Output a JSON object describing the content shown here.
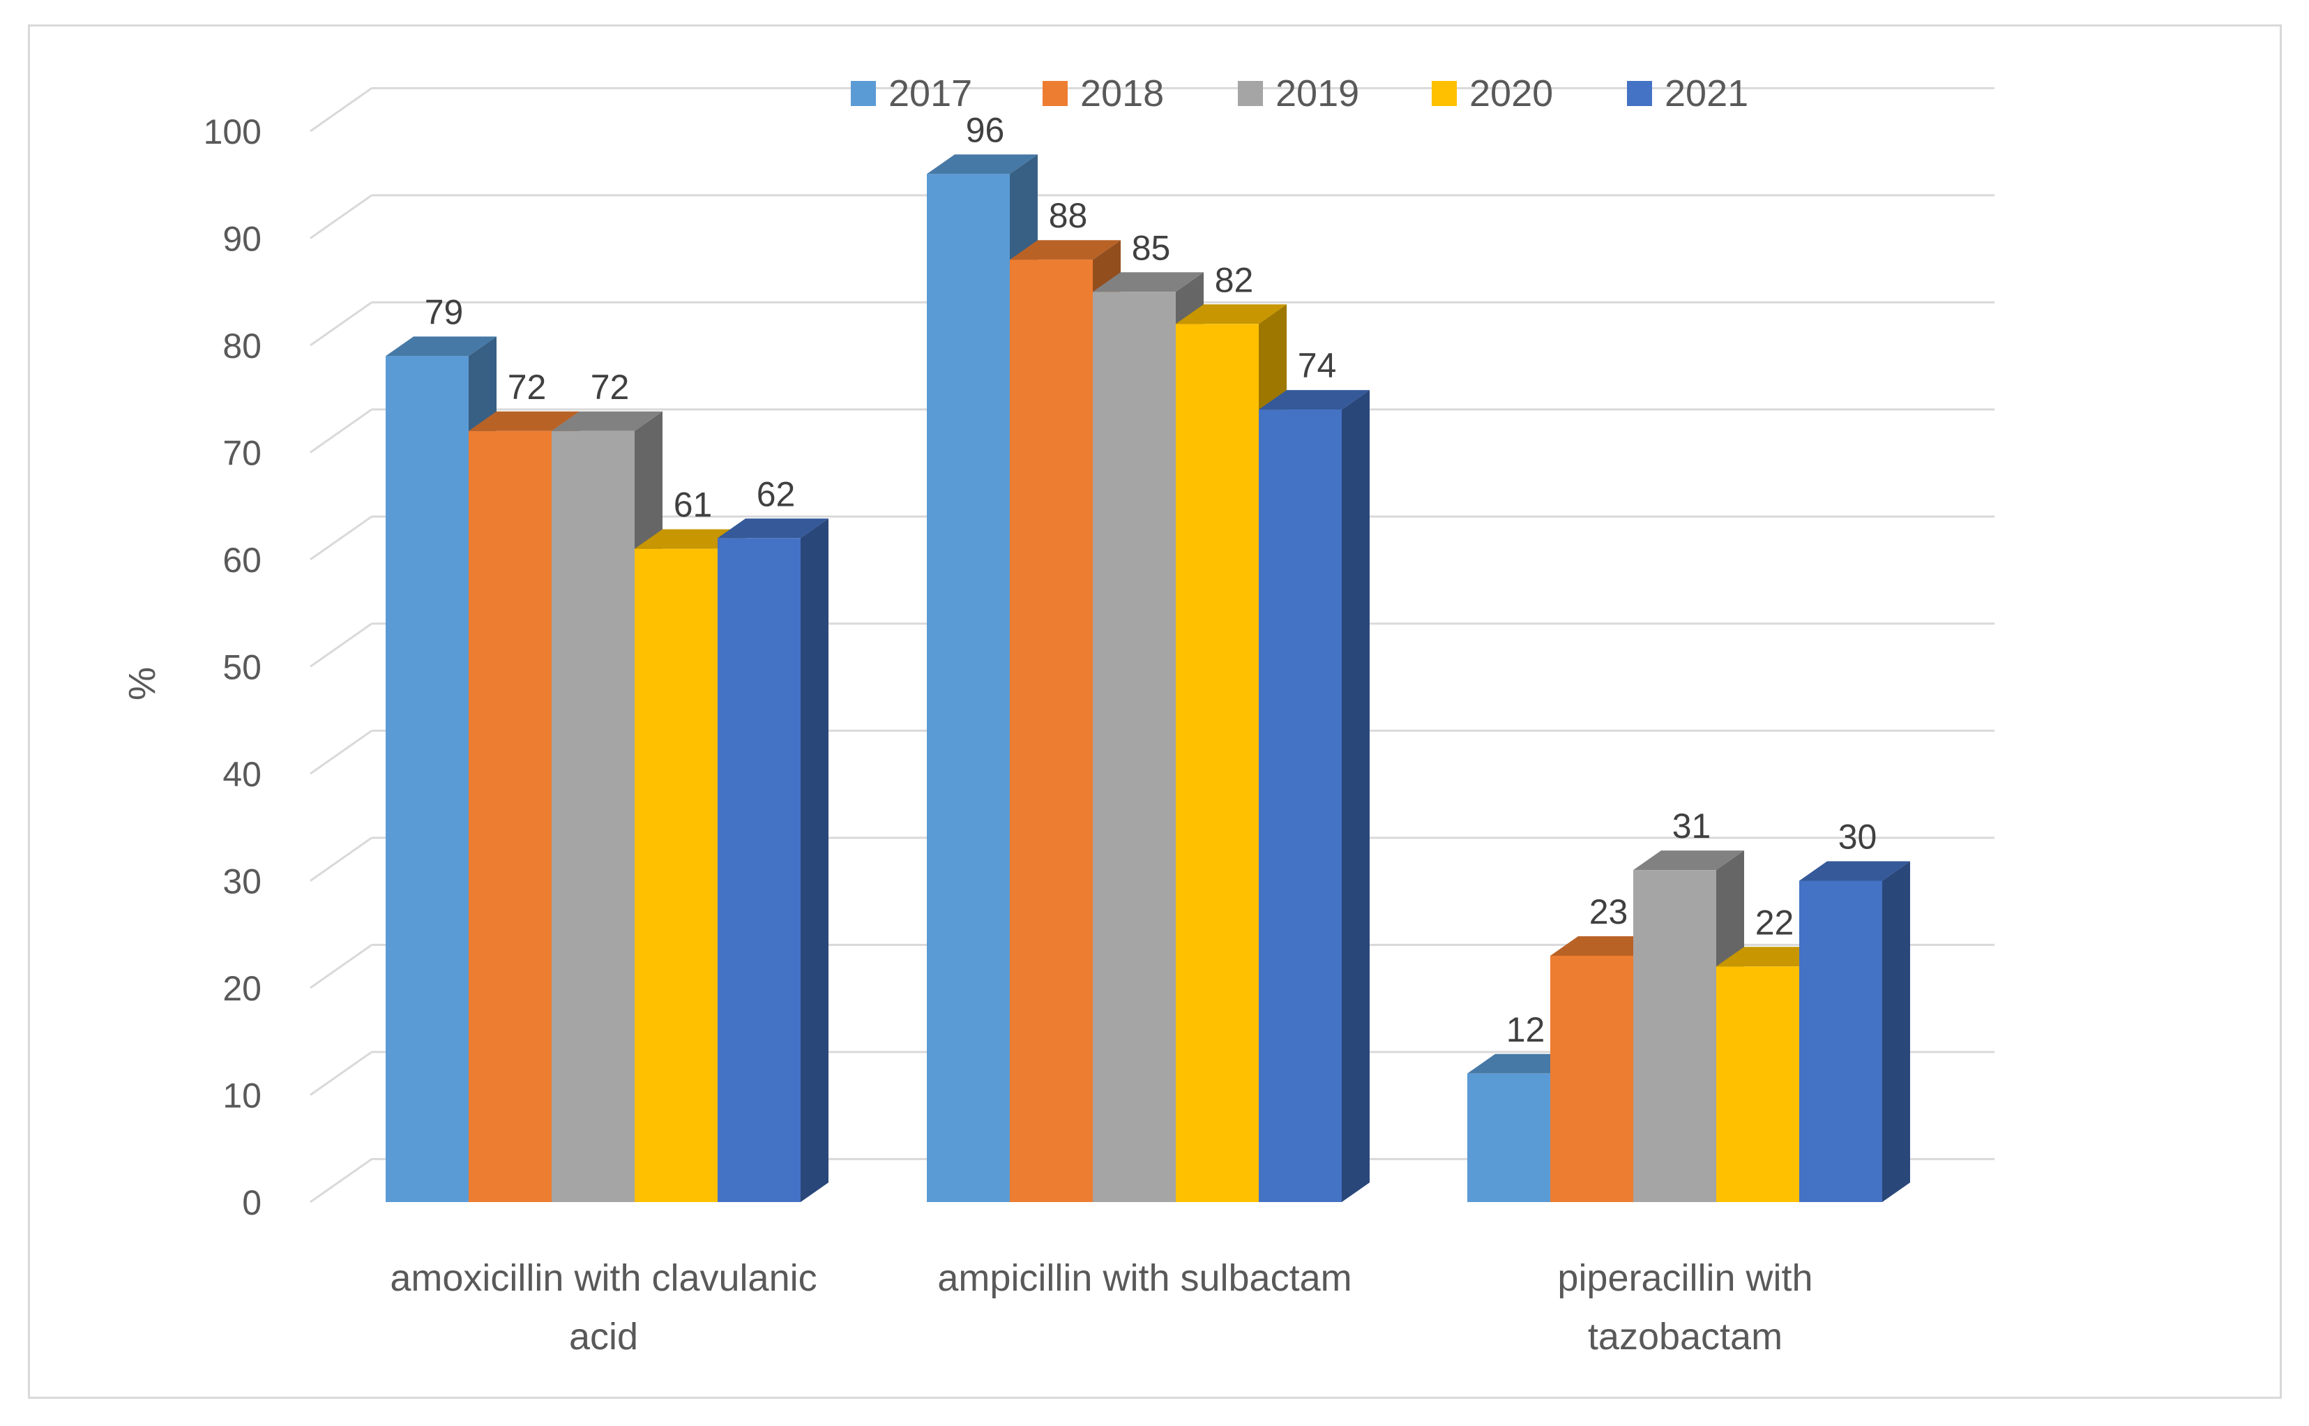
{
  "chart_data": {
    "type": "bar",
    "title": "",
    "xlabel": "",
    "ylabel": "%",
    "ylim": [
      0,
      100
    ],
    "yticks": [
      0,
      10,
      20,
      30,
      40,
      50,
      60,
      70,
      80,
      90,
      100
    ],
    "grid": true,
    "legend_position": "top",
    "categories": [
      [
        "amoxicillin with clavulanic",
        "acid"
      ],
      [
        "ampicillin with sulbactam"
      ],
      [
        "piperacillin with",
        "tazobactam"
      ]
    ],
    "series": [
      {
        "name": "2017",
        "color": "#5B9BD5",
        "values": [
          79,
          96,
          12
        ]
      },
      {
        "name": "2018",
        "color": "#ED7D31",
        "values": [
          72,
          88,
          23
        ]
      },
      {
        "name": "2019",
        "color": "#A5A5A5",
        "values": [
          72,
          85,
          31
        ]
      },
      {
        "name": "2020",
        "color": "#FFC000",
        "values": [
          61,
          82,
          22
        ]
      },
      {
        "name": "2021",
        "color": "#4472C4",
        "values": [
          62,
          74,
          30
        ]
      }
    ]
  }
}
